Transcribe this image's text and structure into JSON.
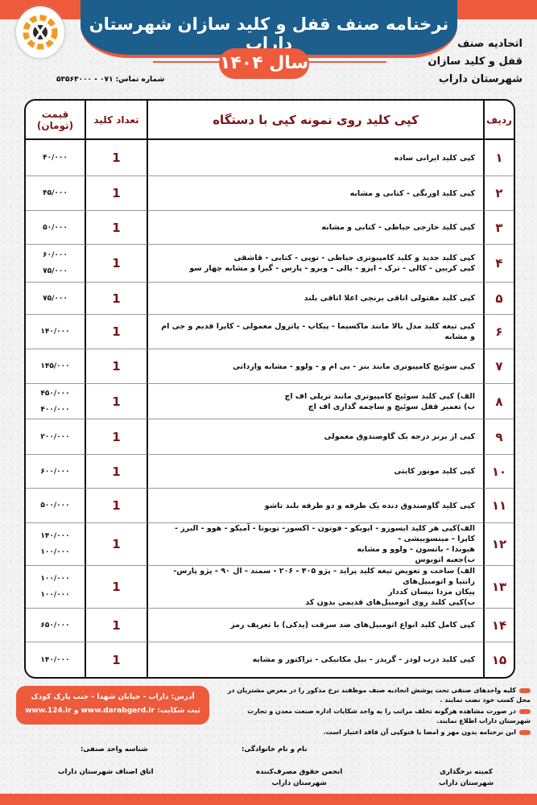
{
  "header": {
    "title": "نرخنامه صنف قفل و کلید سازان شهرستان داراب",
    "year": "سال ۱۴۰۴",
    "org_lines": [
      "اتحادیه صنف",
      "قفل و کلید سازان",
      "شهرستان داراب"
    ],
    "phone": "شماره تماس: ۰۷۱ - ۵۳۵۶۳۰۰۰"
  },
  "table": {
    "headers": {
      "row": "ردیف",
      "desc": "کپی کلید روی نمونه کپی با دستگاه",
      "qty": "تعداد کلید",
      "price": "قیمت (تومان)"
    },
    "rows": [
      {
        "num": "۱",
        "desc": [
          "کپی کلید ایرانی ساده"
        ],
        "qty": "1",
        "prices": [
          "۴۰/۰۰۰"
        ]
      },
      {
        "num": "۲",
        "desc": [
          "کپی کلید اورنگی - کتابی و مشابه"
        ],
        "qty": "1",
        "prices": [
          "۴۵/۰۰۰"
        ]
      },
      {
        "num": "۳",
        "desc": [
          "کپی کلید خارجی حیاطی - کتابی و مشابه"
        ],
        "qty": "1",
        "prices": [
          "۵۰/۰۰۰"
        ]
      },
      {
        "num": "۴",
        "desc": [
          "کپی کلید جدید و کلید کامپیوتری حیاطی - توپی - کتابی - قاشقی",
          "کپی کربین - کالی - ترک - ایزو - یالی - ویرو - پارس - گیرا و مشابه چهار سو"
        ],
        "qty": "1",
        "prices": [
          "۶۰/۰۰۰",
          "۷۵/۰۰۰"
        ]
      },
      {
        "num": "۵",
        "desc": [
          "کپی کلید مفتولی اتاقی برنجی اعلا اتاقی بلند"
        ],
        "qty": "1",
        "prices": [
          "۷۵/۰۰۰"
        ]
      },
      {
        "num": "۶",
        "desc": [
          "کپی تیغه کلید مدل بالا مانند ماکسیما - پیکاپ - پاترول معمولی - کاپرا قدیم و جی ام و مشابه"
        ],
        "qty": "1",
        "prices": [
          "۱۴۰/۰۰۰"
        ]
      },
      {
        "num": "۷",
        "desc": [
          "کپی سوئیچ کامپیوتری مانند بنز - بی ام و - ولوو - مشابه وارداتی"
        ],
        "qty": "1",
        "prices": [
          "۱۴۵/۰۰۰"
        ]
      },
      {
        "num": "۸",
        "desc": [
          "الف) کپی کلید سوئیچ کامپیوتری مانند تریلی اف اچ",
          "ب) تعمیر قفل سوئیچ و ساچمه گذاری اف اچ"
        ],
        "qty": "1",
        "prices": [
          "۴۵۰/۰۰۰",
          "۴۰۰/۰۰۰"
        ]
      },
      {
        "num": "۹",
        "desc": [
          "کپی از برنز درجه یک گاوصندوق معمولی"
        ],
        "qty": "1",
        "prices": [
          "۲۰۰/۰۰۰"
        ]
      },
      {
        "num": "۱۰",
        "desc": [
          "کپی کلید موتور کایتی"
        ],
        "qty": "1",
        "prices": [
          "۶۰۰/۰۰۰"
        ]
      },
      {
        "num": "۱۱",
        "desc": [
          "کپی کلید گاوصندوق دنده یک طرفه و دو طرفه بلند تاشو"
        ],
        "qty": "1",
        "prices": [
          "۵۰۰/۰۰۰"
        ]
      },
      {
        "num": "۱۲",
        "desc": [
          "الف)کپی هر کلید ایسوزو - ایویکو - فوتون - اکسور- تویوتا - آمیکو - هوو - البرز - کاپرا - میتسوبیشی -",
          "هیوندا - باتسون - ولوو و مشابه",
          "ب)جعبه اتوبوس"
        ],
        "qty": "1",
        "prices": [
          "۱۴۰/۰۰۰",
          "۱۰۰/۰۰۰"
        ]
      },
      {
        "num": "۱۳",
        "desc": [
          "الف) ساخت و تعویض تیغه کلید پراید - پژو ۴۰۵ - ۲۰۶ - سمند - ال ۹۰ - پژو پارس-  زانتیا و اتومبیل‌های",
          "پیکان مزدا نیسان کددار",
          "ب)کپی کلید روی اتومبیل‌های قدیمی بدون کد"
        ],
        "qty": "1",
        "prices": [
          "۱۰۰/۰۰۰",
          "۱۰۰/۰۰۰"
        ]
      },
      {
        "num": "۱۴",
        "desc": [
          "کپی کامل کلید انواع اتومبیل‌های ضد سرقت (یدکی) با تعریف رمز"
        ],
        "qty": "1",
        "prices": [
          "۶۵۰/۰۰۰"
        ]
      },
      {
        "num": "۱۵",
        "desc": [
          "کپی کلید درب لودر - گریدر - بیل مکانیکی - تراکتور و مشابه"
        ],
        "qty": "1",
        "prices": [
          "۱۴۰/۰۰۰"
        ]
      }
    ]
  },
  "notes": [
    "کلیه واحدهای صنفی تحت پوشش اتحادیه صنف موظفند نرخ مذکور را در معرض مشتریان در محل کسب خود نصب نمایند .",
    "در صورت مشاهده هرگونه تخلف مراتب را به واحد شکایات اداره صنعت معدن و تجارت شهرستان داراب اطلاع نمایند.",
    "این نرخنامه بدون مهر و امضا یا فتوکپی آن فاقد اعتبار است."
  ],
  "address": {
    "line1": "آدرس: داراب - خیابان شهدا - جنب پارک کودک",
    "line2": "ثبت شکایت: www.darabgerd.ir  و  www.124.ir"
  },
  "fields": {
    "name": "نام و نام خانوادگی:",
    "id": "شناسه واحد صنفی:"
  },
  "signatures": {
    "committee": [
      "کمیته نرخگذاری",
      "شهرستان داراب"
    ],
    "consumer": [
      "انجمن حقوق مصرف‌کننده",
      "شهرستان داراب"
    ],
    "chamber": [
      "اتاق اصناف شهرستان داراب"
    ]
  },
  "colors": {
    "orange": "#ee5a3c",
    "blue": "#1c5e8c",
    "maroon": "#7a1418"
  }
}
